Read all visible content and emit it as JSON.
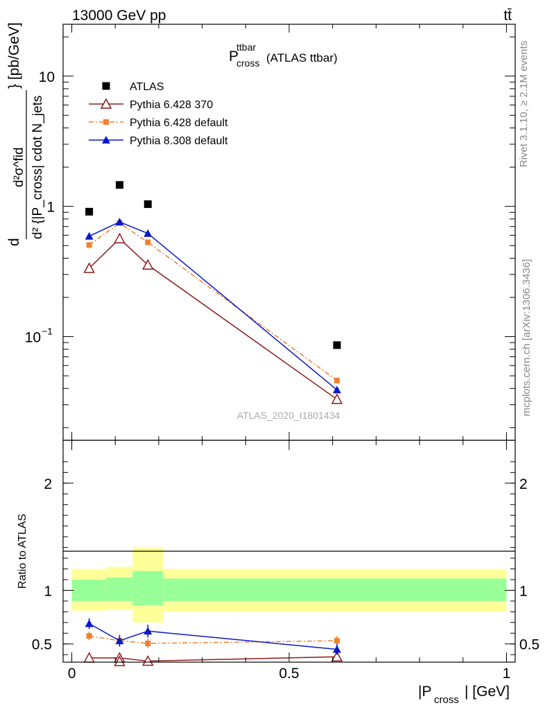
{
  "header": {
    "energy_label": "13000 GeV pp",
    "process_label": "tt̄"
  },
  "chart_data": [
    {
      "type": "scatter",
      "panel": "main",
      "title_main": "P",
      "title_sup": "ttbar",
      "title_sub": "cross",
      "title_suffix": "(ATLAS ttbar)",
      "y_scale": "log",
      "ylim": [
        0.016,
        25
      ],
      "y_ticks": [
        {
          "value": 10,
          "label": "10"
        },
        {
          "value": 1,
          "label": "1"
        }
      ],
      "y_tick_exp": {
        "value": 0.1,
        "base": "10",
        "exp": "−1"
      },
      "ylabel": {
        "numerator": "d²σ^fid",
        "denominator": "d² {|P_cross| cdot N_jets",
        "unit": "} [pb/GeV]"
      },
      "x": [
        0.04,
        0.11,
        0.175,
        0.61
      ],
      "series": [
        {
          "name": "ATLAS",
          "color": "#000000",
          "marker": "square",
          "line": "none",
          "values": [
            0.91,
            1.46,
            1.04,
            0.086
          ]
        },
        {
          "name": "Pythia 6.428 370",
          "color": "#8b1a1a",
          "marker": "open-triangle",
          "line": "solid",
          "values": [
            0.335,
            0.565,
            0.355,
            0.033
          ]
        },
        {
          "name": "Pythia 6.428 default",
          "color": "#f08030",
          "marker": "square-small",
          "line": "dashdot",
          "values": [
            0.505,
            0.745,
            0.53,
            0.046
          ]
        },
        {
          "name": "Pythia 8.308 default",
          "color": "#0a18c8",
          "marker": "filled-triangle",
          "line": "solid",
          "values": [
            0.59,
            0.76,
            0.62,
            0.039
          ]
        }
      ],
      "watermark": "ATLAS_2020_I1801434"
    },
    {
      "type": "line",
      "panel": "ratio",
      "ylabel": "Ratio to ATLAS",
      "xlabel_main": "|P",
      "xlabel_sub": "cross",
      "xlabel_suffix": "| [GeV]",
      "xlim": [
        -0.02,
        1.02
      ],
      "ylim": [
        0.33,
        2.4
      ],
      "x_ticks": [
        {
          "value": 0,
          "label": "0"
        },
        {
          "value": 0.5,
          "label": "0.5"
        },
        {
          "value": 1,
          "label": "1"
        }
      ],
      "y_ticks": [
        {
          "value": 2,
          "label": "2"
        },
        {
          "value": 1,
          "label": "1"
        },
        {
          "value": 0.5,
          "label": "0.5"
        }
      ],
      "bands": [
        {
          "x0": 0.0,
          "x1": 0.08,
          "yellow": [
            0.81,
            1.2
          ],
          "green": [
            0.9,
            1.1
          ]
        },
        {
          "x0": 0.08,
          "x1": 0.14,
          "yellow": [
            0.82,
            1.22
          ],
          "green": [
            0.9,
            1.12
          ]
        },
        {
          "x0": 0.14,
          "x1": 0.21,
          "yellow": [
            0.7,
            1.4
          ],
          "green": [
            0.86,
            1.18
          ]
        },
        {
          "x0": 0.21,
          "x1": 1.0,
          "yellow": [
            0.8,
            1.2
          ],
          "green": [
            0.9,
            1.11
          ]
        }
      ],
      "series": [
        {
          "name": "Pythia 6.428 370",
          "values": [
            0.37,
            0.37,
            0.34,
            0.38
          ]
        },
        {
          "name": "Pythia 6.428 default",
          "values": [
            0.575,
            0.53,
            0.505,
            0.53
          ],
          "errors": [
            0.04,
            0.04,
            0.045,
            0.045
          ]
        },
        {
          "name": "Pythia 8.308 default",
          "values": [
            0.69,
            0.53,
            0.62,
            0.45
          ],
          "errors": [
            0.05,
            0.055,
            0.06,
            0.05
          ]
        }
      ]
    }
  ],
  "side_labels": {
    "rivet": "Rivet 3.1.10, ≥ 2.1M events",
    "mcplots": "mcplots.cern.ch [arXiv:1306.3436]"
  }
}
